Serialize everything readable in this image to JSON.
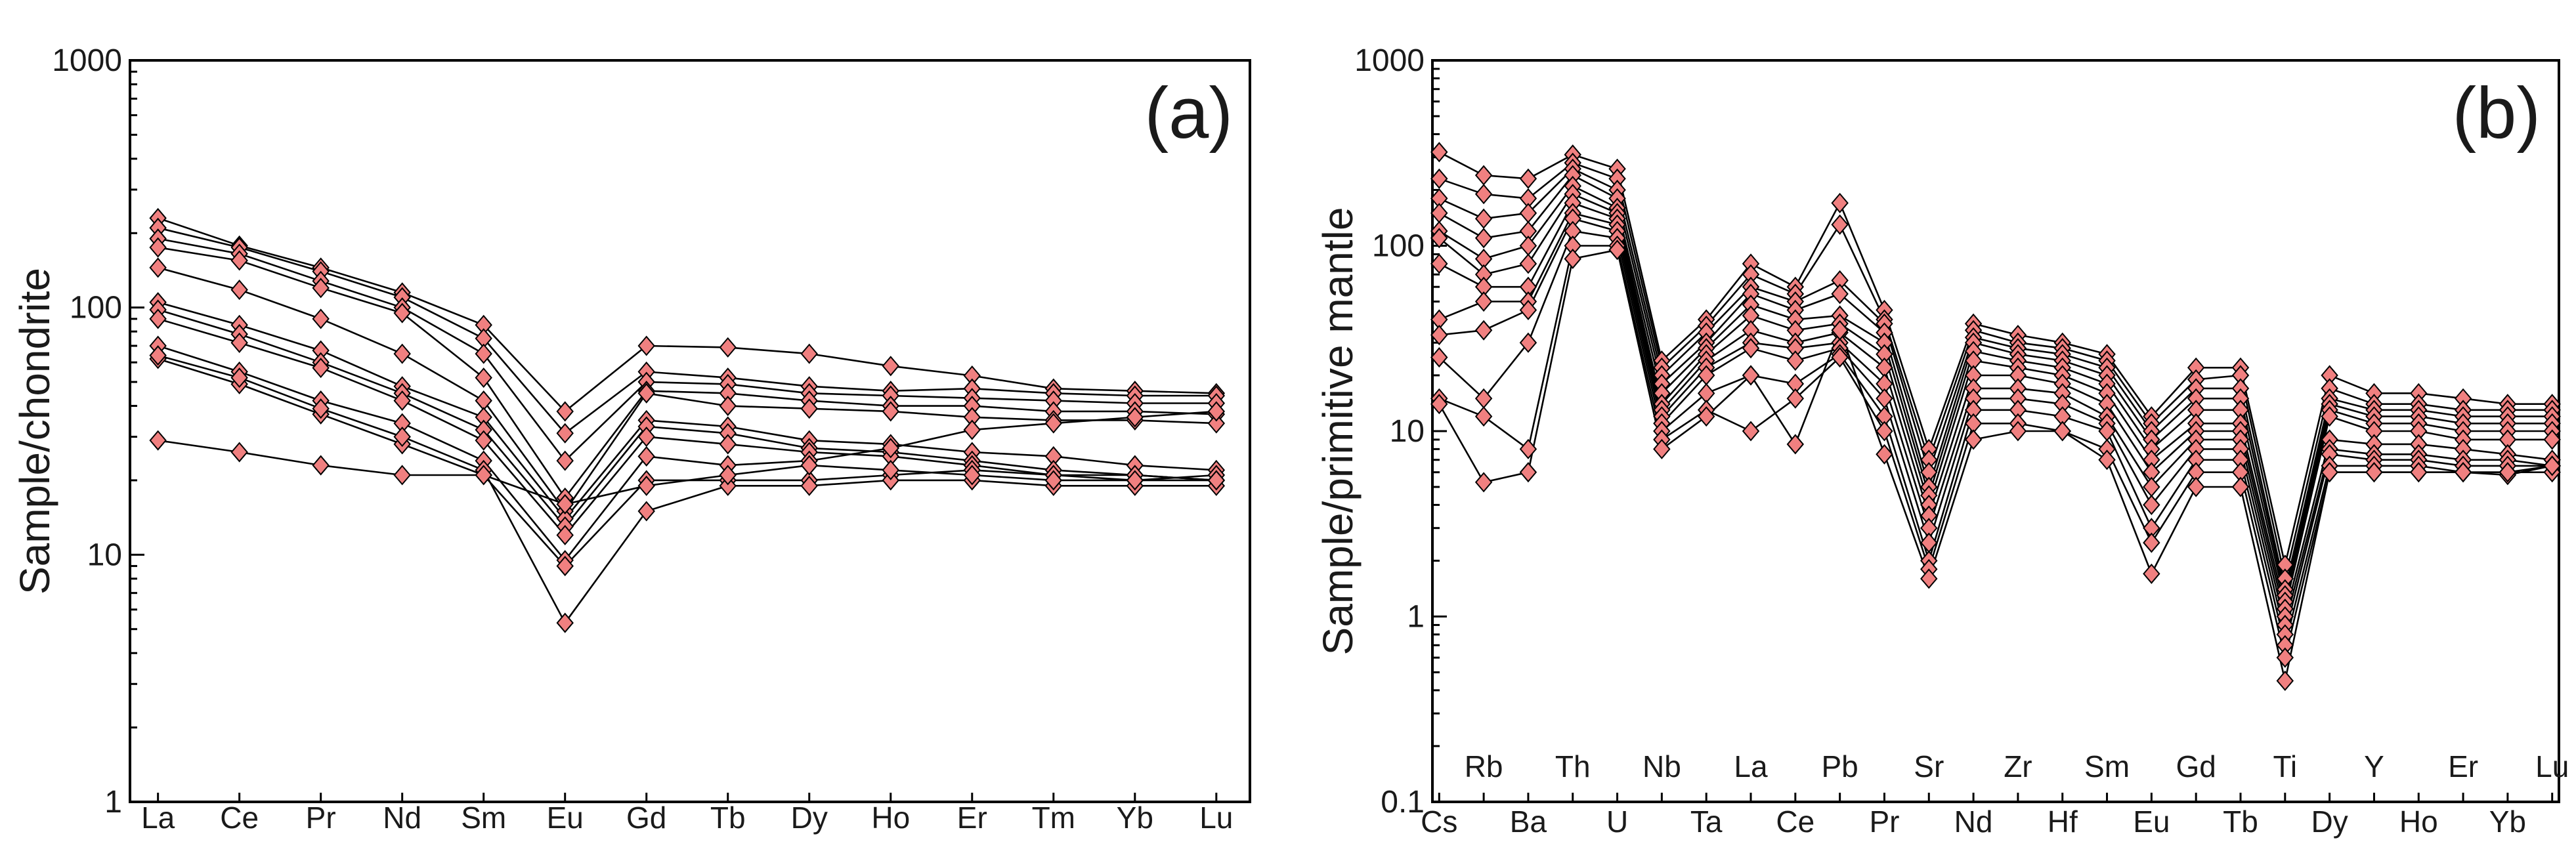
{
  "style": {
    "marker_fill": "#f08080",
    "line_color": "#000000",
    "marker": "diamond"
  },
  "chart_data": [
    {
      "type": "line",
      "panel_label": "(a)",
      "ylabel": "Sample/chondrite",
      "yscale": "log",
      "ylim": [
        1,
        1000
      ],
      "y_ticks": [
        "1",
        "10",
        "100",
        "1000"
      ],
      "categories": [
        "La",
        "Ce",
        "Pr",
        "Nd",
        "Sm",
        "Eu",
        "Gd",
        "Tb",
        "Dy",
        "Ho",
        "Er",
        "Tm",
        "Yb",
        "Lu"
      ],
      "grid": false,
      "series": [
        {
          "values": [
            230,
            178,
            145,
            115,
            85,
            38,
            70,
            69,
            65,
            58,
            53,
            47,
            46,
            45
          ]
        },
        {
          "values": [
            210,
            175,
            140,
            110,
            75,
            31,
            55,
            52,
            48,
            46,
            47,
            45,
            44,
            44
          ]
        },
        {
          "values": [
            190,
            165,
            128,
            100,
            65,
            24,
            50,
            49,
            45,
            44,
            43,
            42,
            41,
            41
          ]
        },
        {
          "values": [
            175,
            155,
            120,
            95,
            52,
            17,
            46,
            45,
            42,
            40,
            40,
            38,
            38,
            37
          ]
        },
        {
          "values": [
            145,
            118,
            90,
            65,
            42,
            15,
            45,
            40,
            39,
            38,
            36,
            35,
            35,
            34
          ]
        },
        {
          "values": [
            105,
            85,
            67,
            48,
            36,
            14,
            35,
            33,
            29,
            28,
            26,
            25,
            23,
            22
          ]
        },
        {
          "values": [
            98,
            78,
            60,
            45,
            32,
            13,
            33,
            31,
            27,
            26,
            24,
            22,
            21,
            20
          ]
        },
        {
          "values": [
            90,
            72,
            57,
            42,
            29,
            12,
            30,
            28,
            26,
            25,
            23,
            21,
            20,
            21
          ]
        },
        {
          "values": [
            70,
            55,
            42,
            34,
            24,
            9.5,
            25,
            23,
            24,
            27,
            32,
            34,
            36,
            38
          ]
        },
        {
          "values": [
            62,
            49,
            37,
            28,
            21,
            9.0,
            20,
            20,
            20,
            21,
            22,
            21,
            21,
            20
          ]
        },
        {
          "values": [
            64,
            52,
            39,
            30,
            22,
            5.3,
            15,
            19,
            19,
            20,
            20,
            19,
            19,
            19
          ]
        },
        {
          "values": [
            29,
            26,
            23,
            21,
            21,
            16,
            19,
            21,
            23,
            22,
            21,
            20,
            20,
            20
          ]
        }
      ]
    },
    {
      "type": "line",
      "panel_label": "(b)",
      "ylabel": "Sample/primitive mantle",
      "yscale": "log",
      "ylim": [
        0.1,
        1000
      ],
      "y_ticks": [
        "0.1",
        "1",
        "10",
        "100",
        "1000"
      ],
      "categories": [
        "Cs",
        "Rb",
        "Ba",
        "Th",
        "U",
        "Nb",
        "Ta",
        "La",
        "Ce",
        "Pb",
        "Pr",
        "Sr",
        "Nd",
        "Zr",
        "Hf",
        "Sm",
        "Eu",
        "Gd",
        "Tb",
        "Ti",
        "Dy",
        "Y",
        "Ho",
        "Er",
        "Yb",
        "Lu"
      ],
      "x_labels_upper": [
        "Rb",
        "Th",
        "Nb",
        "La",
        "Pb",
        "Sr",
        "Zr",
        "Sm",
        "Gd",
        "Ti",
        "Y",
        "Er",
        "Lu"
      ],
      "x_labels_lower": [
        "Cs",
        "Ba",
        "U",
        "Ta",
        "Ce",
        "Pr",
        "Nd",
        "Hf",
        "Eu",
        "Tb",
        "Dy",
        "Ho",
        "Yb"
      ],
      "grid": false,
      "series": [
        {
          "values": [
            320,
            240,
            230,
            310,
            260,
            24,
            40,
            80,
            60,
            170,
            45,
            8.0,
            38,
            33,
            30,
            26,
            12,
            22,
            22,
            1.9,
            20,
            16,
            16,
            15,
            14,
            14
          ]
        },
        {
          "values": [
            230,
            190,
            180,
            280,
            230,
            22,
            37,
            70,
            55,
            130,
            40,
            7.0,
            35,
            30,
            28,
            24,
            11,
            19,
            20,
            1.6,
            17,
            14,
            14,
            13,
            13,
            13
          ]
        },
        {
          "values": [
            180,
            140,
            150,
            260,
            200,
            20,
            34,
            60,
            50,
            65,
            38,
            6.0,
            32,
            28,
            26,
            22,
            10,
            17,
            17,
            1.4,
            15,
            13,
            13,
            12,
            12,
            12
          ]
        },
        {
          "values": [
            150,
            110,
            120,
            240,
            180,
            18,
            30,
            55,
            45,
            55,
            34,
            5.0,
            30,
            26,
            24,
            20,
            9.0,
            15,
            15,
            1.3,
            14,
            12,
            12,
            11,
            11,
            11
          ]
        },
        {
          "values": [
            120,
            85,
            100,
            210,
            160,
            16,
            28,
            48,
            40,
            42,
            30,
            4.5,
            27,
            24,
            22,
            18,
            8.0,
            13,
            13,
            1.2,
            13,
            11,
            11,
            10,
            10,
            10
          ]
        },
        {
          "values": [
            110,
            70,
            80,
            190,
            150,
            14,
            26,
            42,
            35,
            38,
            26,
            4.0,
            24,
            22,
            20,
            16,
            7.0,
            11,
            11,
            1.1,
            12,
            10,
            10,
            9.0,
            9.0,
            9.0
          ]
        },
        {
          "values": [
            80,
            60,
            60,
            170,
            140,
            13,
            24,
            35,
            30,
            34,
            22,
            3.5,
            20,
            20,
            18,
            14,
            6.0,
            10,
            10,
            1.0,
            9.0,
            8.5,
            8.5,
            8.0,
            7.5,
            7.0
          ]
        },
        {
          "values": [
            40,
            50,
            50,
            150,
            130,
            12,
            22,
            30,
            28,
            30,
            18,
            3.0,
            17,
            17,
            16,
            12,
            5.0,
            9.0,
            9.0,
            0.9,
            8.0,
            7.5,
            7.5,
            7.0,
            7.0,
            6.5
          ]
        },
        {
          "values": [
            33,
            35,
            45,
            140,
            120,
            11,
            20,
            28,
            24,
            28,
            15,
            2.5,
            15,
            15,
            14,
            11,
            4.0,
            8.0,
            8.0,
            0.8,
            7.5,
            7.0,
            7.0,
            6.5,
            6.5,
            6.5
          ]
        },
        {
          "values": [
            25,
            15,
            30,
            120,
            110,
            10,
            16,
            20,
            18,
            26,
            12,
            2.0,
            13,
            13,
            12,
            10,
            3.0,
            7.0,
            7.0,
            0.7,
            6.5,
            6.5,
            6.5,
            6.0,
            6.0,
            6.0
          ]
        },
        {
          "values": [
            15,
            12,
            8.0,
            100,
            100,
            9.0,
            13,
            10,
            15,
            25,
            10,
            1.8,
            11,
            11,
            10,
            8.0,
            2.5,
            6.0,
            6.0,
            0.6,
            6.0,
            6.0,
            6.0,
            6.0,
            5.8,
            6.5
          ]
        },
        {
          "values": [
            14,
            5.3,
            6.0,
            85,
            95,
            8.0,
            12,
            20,
            8.5,
            35,
            7.5,
            1.6,
            9.0,
            10,
            10,
            7.0,
            1.7,
            5.0,
            5.0,
            0.45,
            6.0,
            6.0,
            6.0,
            6.0,
            6.0,
            6.5
          ]
        }
      ]
    }
  ]
}
